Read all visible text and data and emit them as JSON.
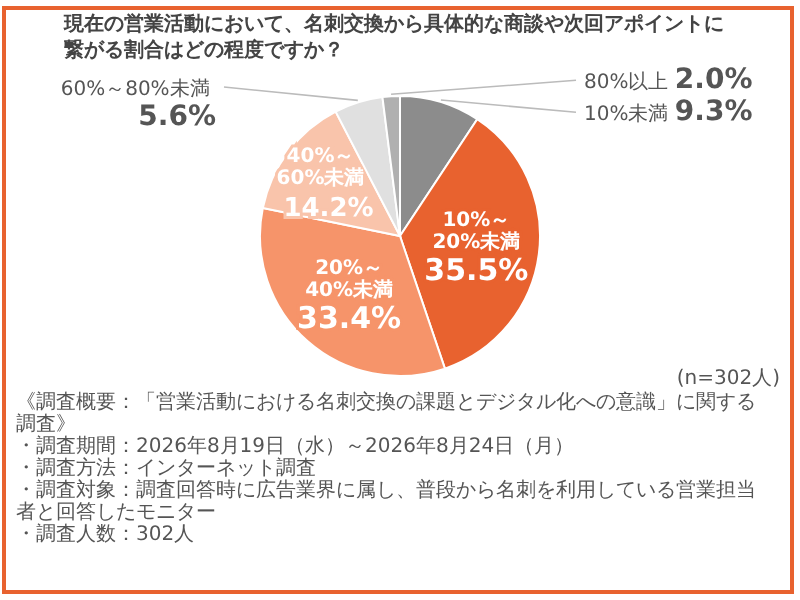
{
  "chart_data": {
    "type": "pie",
    "title": "現在の営業活動において、名刺交換から具体的な商談や次回アポイントに繋がる割合はどの程度ですか？",
    "categories": [
      "10%未満",
      "10%～20%未満",
      "20%～40%未満",
      "40%～60%未満",
      "60%～80%未満",
      "80%以上"
    ],
    "values": [
      9.3,
      35.5,
      33.4,
      14.2,
      5.6,
      2.0
    ],
    "value_labels": [
      "9.3%",
      "35.5%",
      "33.4%",
      "14.2%",
      "5.6%",
      "2.0%"
    ],
    "colors": [
      "#8c8c8c",
      "#e8622f",
      "#f6946a",
      "#f9c4ab",
      "#e0e0e0",
      "#b0b0b0"
    ],
    "annotations": [
      "(n=302人)",
      "《調査概要：「営業活動における名刺交換の課題とデジタル化への意識」に関する調査》",
      "・調査期間：2026年8月19日（水）～2026年8月24日（月）",
      "・調査方法：インターネット調査",
      "・調査対象：調査回答時に広告業界に属し、普段から名刺を利用している営業担当者と回答したモニター",
      "・調査人数：302人"
    ]
  }
}
